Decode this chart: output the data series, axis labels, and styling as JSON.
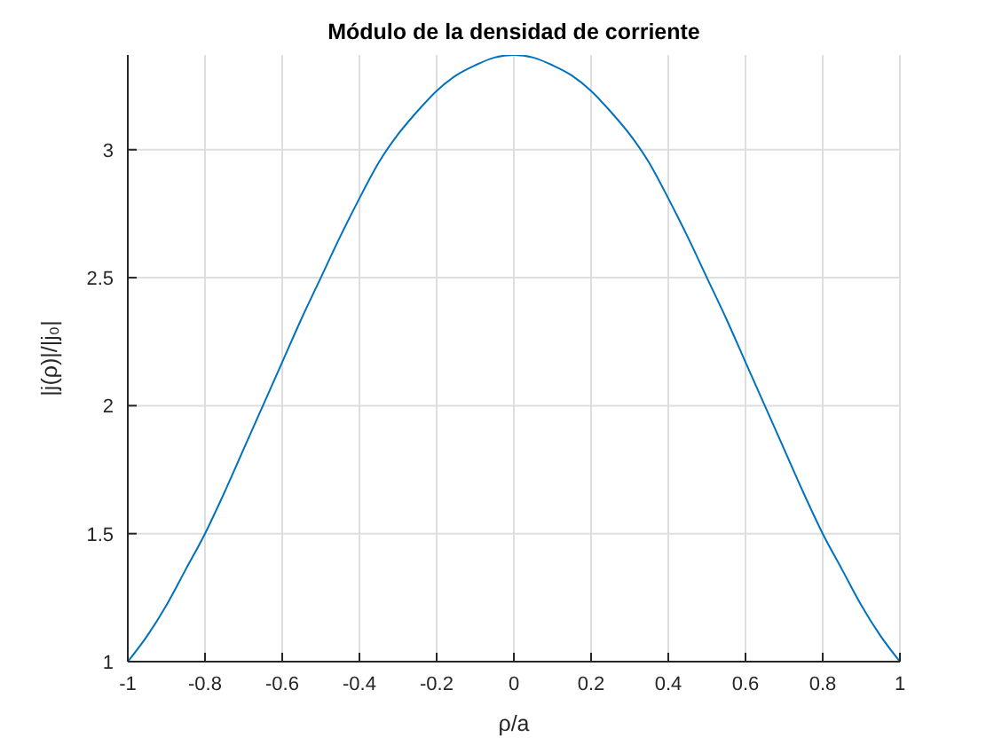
{
  "chart_data": {
    "type": "line",
    "title": "Módulo de la densidad de corriente",
    "xlabel": "ρ/a",
    "ylabel": "|j(ρ)|/|j₀|",
    "x": [
      -1,
      -0.95,
      -0.9,
      -0.85,
      -0.8,
      -0.75,
      -0.7,
      -0.65,
      -0.6,
      -0.55,
      -0.5,
      -0.45,
      -0.4,
      -0.35,
      -0.3,
      -0.25,
      -0.2,
      -0.15,
      -0.1,
      -0.05,
      0,
      0.05,
      0.1,
      0.15,
      0.2,
      0.25,
      0.3,
      0.35,
      0.4,
      0.45,
      0.5,
      0.55,
      0.6,
      0.65,
      0.7,
      0.75,
      0.8,
      0.85,
      0.9,
      0.95,
      1
    ],
    "series": [
      {
        "color": "#0072bd",
        "values": [
          1.0,
          1.1,
          1.22,
          1.36,
          1.5,
          1.66,
          1.83,
          2.0,
          2.17,
          2.34,
          2.5,
          2.66,
          2.81,
          2.95,
          3.06,
          3.15,
          3.23,
          3.29,
          3.33,
          3.36,
          3.37,
          3.36,
          3.33,
          3.29,
          3.23,
          3.15,
          3.06,
          2.95,
          2.81,
          2.66,
          2.5,
          2.34,
          2.17,
          2.0,
          1.83,
          1.66,
          1.5,
          1.36,
          1.22,
          1.1,
          1.0
        ]
      }
    ],
    "xlim": [
      -1,
      1
    ],
    "ylim": [
      1,
      3.37
    ],
    "xticks": [
      -1,
      -0.8,
      -0.6,
      -0.4,
      -0.2,
      0,
      0.2,
      0.4,
      0.6,
      0.8,
      1
    ],
    "yticks": [
      1,
      1.5,
      2,
      2.5,
      3
    ],
    "grid": true,
    "marker": "none",
    "line_style": "solid"
  }
}
